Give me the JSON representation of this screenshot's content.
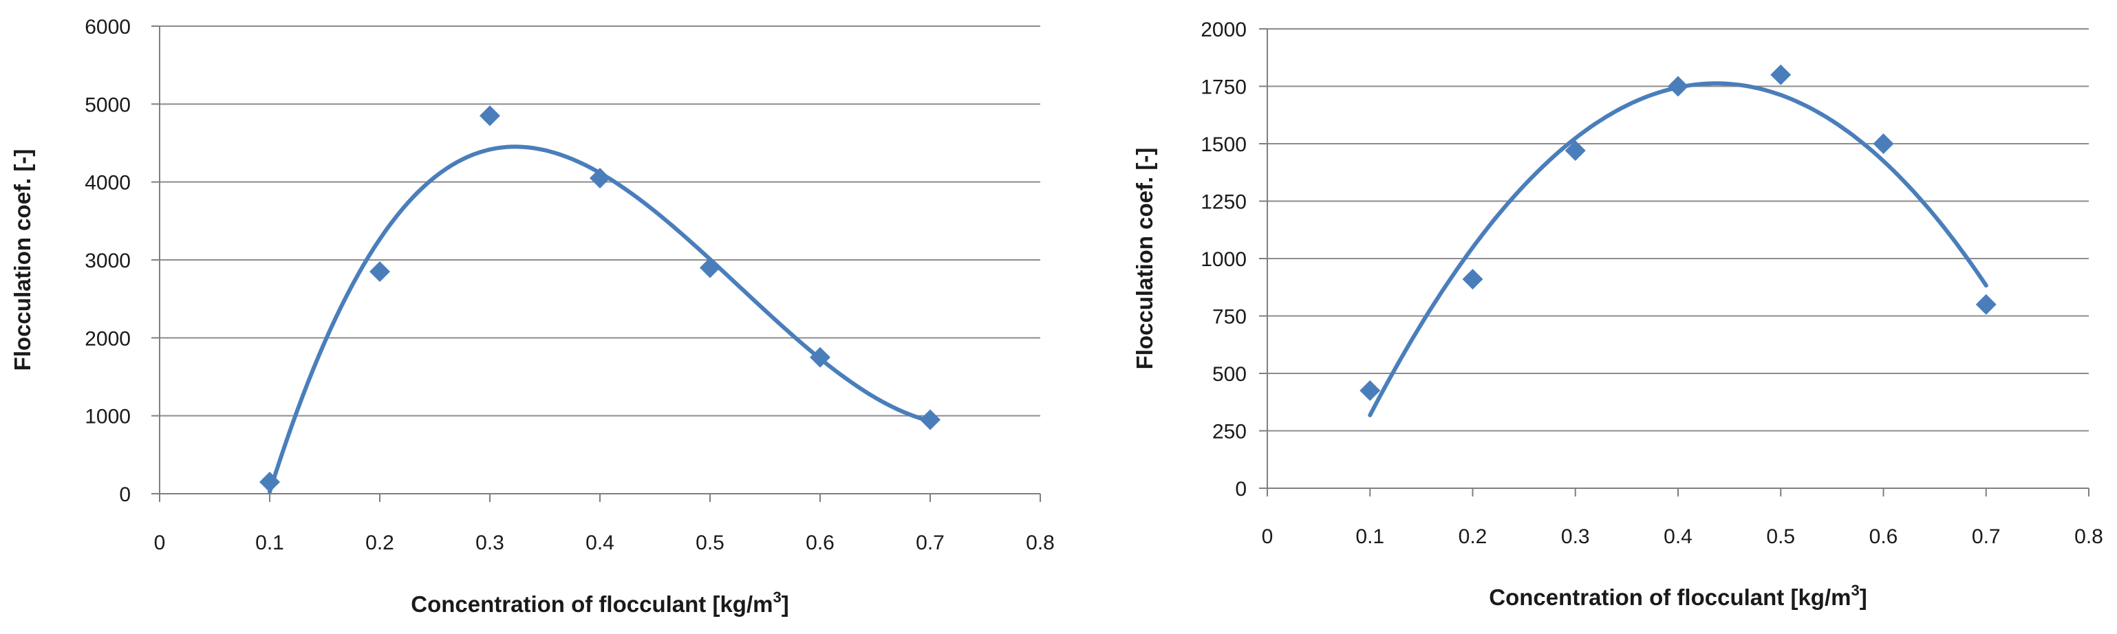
{
  "chart_data": [
    {
      "type": "scatter",
      "title": "",
      "xlabel": "Concentration of flocculant [kg/m",
      "xlabel_sup": "3",
      "xlabel_end": "]",
      "ylabel": "Flocculation coef. [-]",
      "xlim": [
        0,
        0.8
      ],
      "ylim": [
        0,
        6000
      ],
      "xticks": [
        "0",
        "0.1",
        "0.2",
        "0.3",
        "0.4",
        "0.5",
        "0.6",
        "0.7",
        "0.8"
      ],
      "yticks": [
        "0",
        "1000",
        "2000",
        "3000",
        "4000",
        "5000",
        "6000"
      ],
      "grid": true,
      "x": [
        0.1,
        0.2,
        0.3,
        0.4,
        0.5,
        0.6,
        0.7
      ],
      "y": [
        150,
        2850,
        4850,
        4050,
        2900,
        1750,
        950
      ],
      "trendline": "polynomial",
      "marker": "diamond",
      "color": "#4a7ebb"
    },
    {
      "type": "scatter",
      "title": "",
      "xlabel": "Concentration of flocculant [kg/m",
      "xlabel_sup": "3",
      "xlabel_end": "]",
      "ylabel": "Flocculation coef. [-]",
      "xlim": [
        0,
        0.8
      ],
      "ylim": [
        0,
        2000
      ],
      "xticks": [
        "0",
        "0.1",
        "0.2",
        "0.3",
        "0.4",
        "0.5",
        "0.6",
        "0.7",
        "0.8"
      ],
      "yticks": [
        "0",
        "250",
        "500",
        "750",
        "1000",
        "1250",
        "1500",
        "1750",
        "2000"
      ],
      "grid": true,
      "x": [
        0.1,
        0.2,
        0.3,
        0.4,
        0.5,
        0.6,
        0.7
      ],
      "y": [
        425,
        910,
        1470,
        1750,
        1800,
        1500,
        800
      ],
      "trendline": "polynomial",
      "marker": "diamond",
      "color": "#4a7ebb"
    }
  ]
}
